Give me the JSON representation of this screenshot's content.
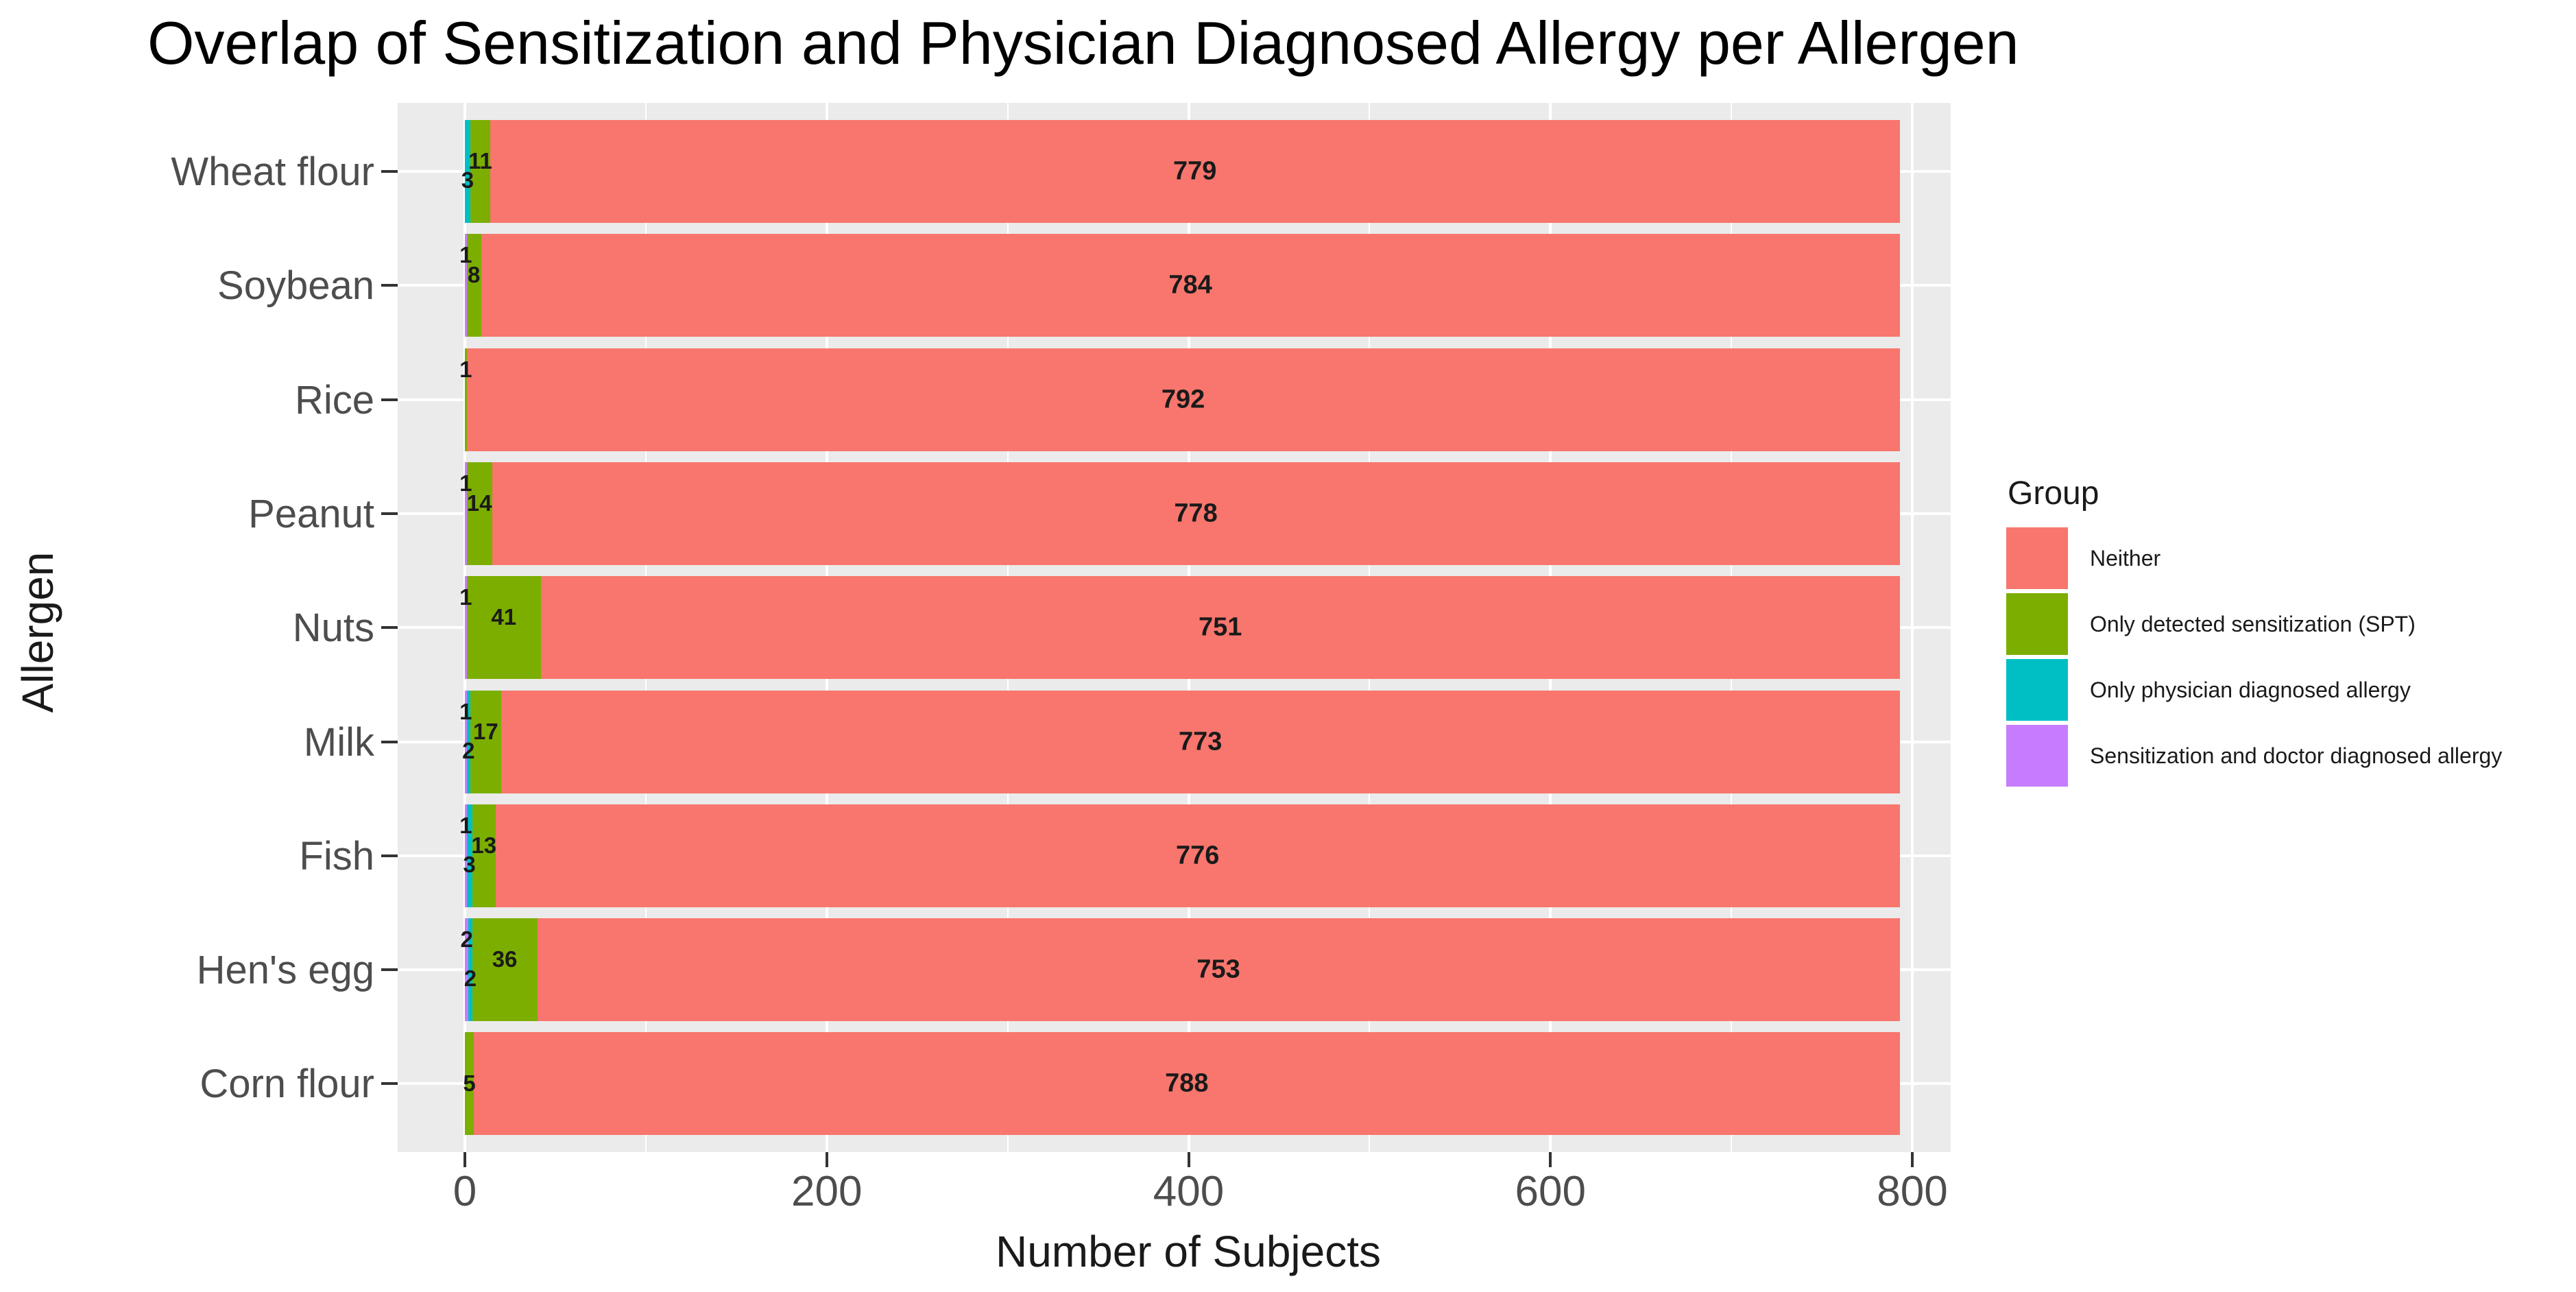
{
  "legend": {
    "title": "Group",
    "items": [
      {
        "label": "Neither",
        "color": "#F8766D"
      },
      {
        "label": "Only detected sensitization (SPT)",
        "color": "#7CAE00"
      },
      {
        "label": "Only physician diagnosed allergy",
        "color": "#00BFC4"
      },
      {
        "label": "Sensitization and doctor diagnosed allergy",
        "color": "#C77CFF"
      }
    ]
  },
  "colors": {
    "panel_background": "#EBEBEB",
    "gridline": "#FFFFFF",
    "axis_text": "#4D4D4D",
    "title_text": "#000000",
    "bar_label_text": "#1a1a1a"
  },
  "chart_data": {
    "type": "bar",
    "orientation": "horizontal",
    "stacked": true,
    "title": "Overlap of Sensitization and Physician Diagnosed Allergy per Allergen",
    "xlabel": "Number of Subjects",
    "ylabel": "Allergen",
    "xlim": [
      0,
      800
    ],
    "x_major_ticks": [
      0,
      200,
      400,
      600,
      800
    ],
    "x_minor_gridlines": [
      100,
      300,
      500,
      700
    ],
    "grid": true,
    "legend_position": "right",
    "total_subjects_per_allergen": 793,
    "categories": [
      "Wheat flour",
      "Soybean",
      "Rice",
      "Peanut",
      "Nuts",
      "Milk",
      "Fish",
      "Hen's egg",
      "Corn flour"
    ],
    "series": [
      {
        "name": "Sensitization and doctor diagnosed allergy",
        "color": "#C77CFF",
        "values": [
          0,
          1,
          0,
          1,
          1,
          1,
          1,
          2,
          0
        ]
      },
      {
        "name": "Only physician diagnosed allergy",
        "color": "#00BFC4",
        "values": [
          3,
          0,
          0,
          0,
          0,
          2,
          3,
          2,
          0
        ]
      },
      {
        "name": "Only detected sensitization (SPT)",
        "color": "#7CAE00",
        "values": [
          11,
          8,
          1,
          14,
          41,
          17,
          13,
          36,
          5
        ]
      },
      {
        "name": "Neither",
        "color": "#F8766D",
        "values": [
          779,
          784,
          792,
          778,
          751,
          773,
          776,
          753,
          788
        ]
      }
    ],
    "bar_labels": [
      [
        {
          "text": "11",
          "series": 2,
          "pos": "mid"
        },
        {
          "text": "3",
          "series": 1,
          "pos": "bottom"
        },
        {
          "text": "779",
          "series": 3,
          "pos": "center"
        }
      ],
      [
        {
          "text": "1",
          "series": 0,
          "pos": "top"
        },
        {
          "text": "8",
          "series": 2,
          "pos": "mid"
        },
        {
          "text": "784",
          "series": 3,
          "pos": "center"
        }
      ],
      [
        {
          "text": "1",
          "series": 2,
          "pos": "top"
        },
        {
          "text": "792",
          "series": 3,
          "pos": "center"
        }
      ],
      [
        {
          "text": "1",
          "series": 0,
          "pos": "top"
        },
        {
          "text": "14",
          "series": 2,
          "pos": "mid"
        },
        {
          "text": "778",
          "series": 3,
          "pos": "center"
        }
      ],
      [
        {
          "text": "1",
          "series": 0,
          "pos": "top"
        },
        {
          "text": "41",
          "series": 2,
          "pos": "mid"
        },
        {
          "text": "751",
          "series": 3,
          "pos": "center"
        }
      ],
      [
        {
          "text": "1",
          "series": 0,
          "pos": "top"
        },
        {
          "text": "17",
          "series": 2,
          "pos": "mid"
        },
        {
          "text": "2",
          "series": 1,
          "pos": "bottom"
        },
        {
          "text": "773",
          "series": 3,
          "pos": "center"
        }
      ],
      [
        {
          "text": "1",
          "series": 0,
          "pos": "top"
        },
        {
          "text": "13",
          "series": 2,
          "pos": "mid"
        },
        {
          "text": "3",
          "series": 1,
          "pos": "bottom"
        },
        {
          "text": "776",
          "series": 3,
          "pos": "center"
        }
      ],
      [
        {
          "text": "2",
          "series": 0,
          "pos": "top"
        },
        {
          "text": "36",
          "series": 2,
          "pos": "mid"
        },
        {
          "text": "2",
          "series": 1,
          "pos": "bottom"
        },
        {
          "text": "753",
          "series": 3,
          "pos": "center"
        }
      ],
      [
        {
          "text": "5",
          "series": 2,
          "pos": "center"
        },
        {
          "text": "788",
          "series": 3,
          "pos": "center"
        }
      ]
    ]
  }
}
